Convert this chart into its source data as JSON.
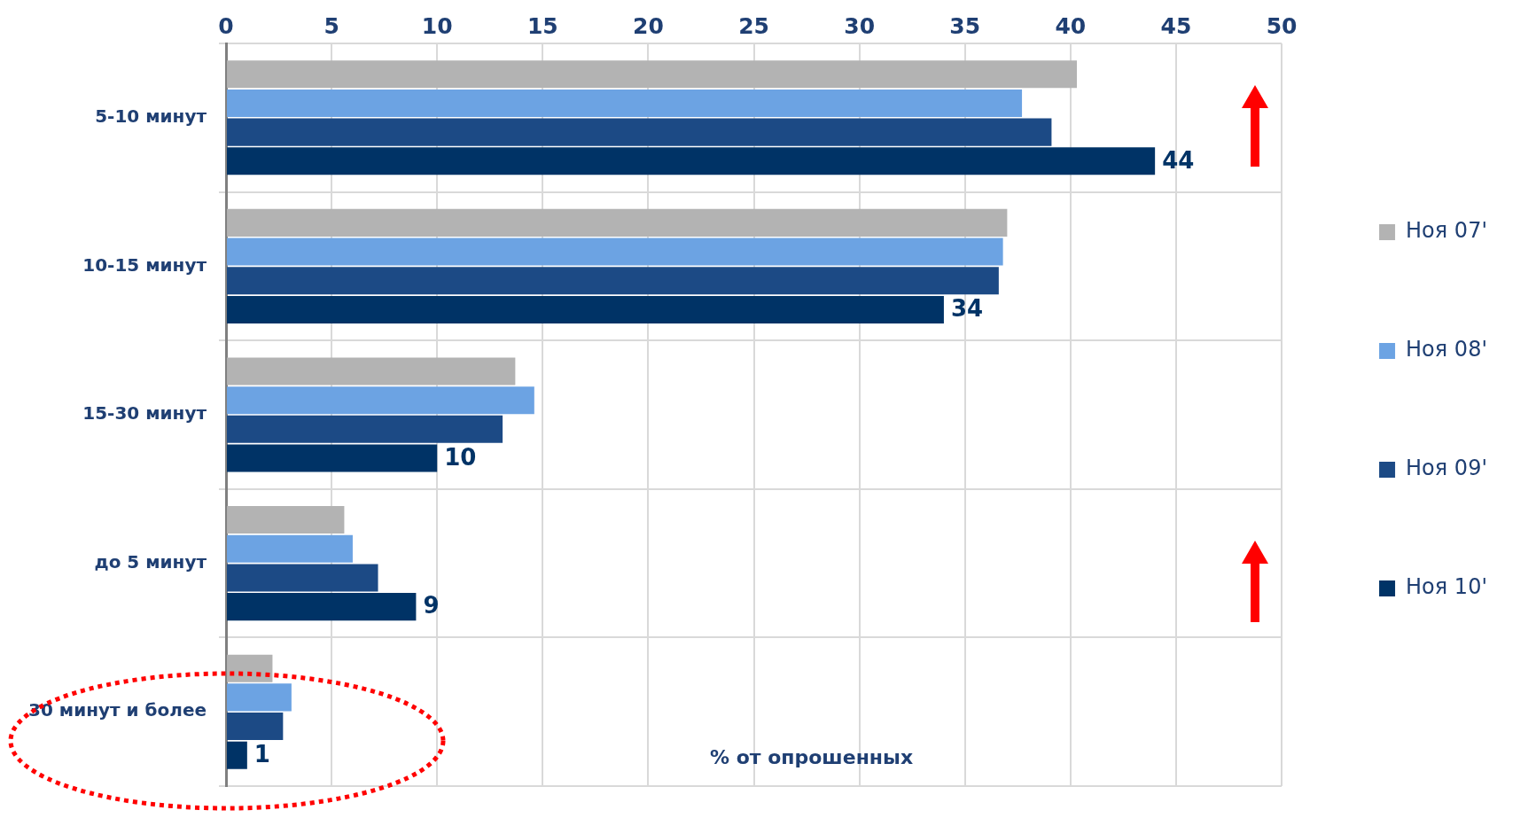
{
  "chart_data": {
    "type": "bar",
    "orientation": "horizontal",
    "xlabel": "% от опрошенных",
    "categories": [
      "5-10 минут",
      "10-15 минут",
      "15-30 минут",
      "до 5 минут",
      "30 минут и более"
    ],
    "series": [
      {
        "name": "Ноя 07'",
        "color": "#b3b3b3",
        "values": [
          40.3,
          37.0,
          13.7,
          5.6,
          2.2
        ]
      },
      {
        "name": "Ноя 08'",
        "color": "#6ca3e3",
        "values": [
          37.7,
          36.8,
          14.6,
          6.0,
          3.1
        ]
      },
      {
        "name": "Ноя 09'",
        "color": "#1c4a85",
        "values": [
          39.1,
          36.6,
          13.1,
          7.2,
          2.7
        ]
      },
      {
        "name": "Ноя 10'",
        "color": "#003366",
        "values": [
          44,
          34,
          10,
          9,
          1
        ],
        "value_labels": [
          "44",
          "34",
          "10",
          "9",
          "1"
        ]
      }
    ],
    "xlim": [
      0,
      50
    ],
    "xticks": [
      0,
      5,
      10,
      15,
      20,
      25,
      30,
      35,
      40,
      45,
      50
    ],
    "grid": true,
    "legend": "right"
  }
}
